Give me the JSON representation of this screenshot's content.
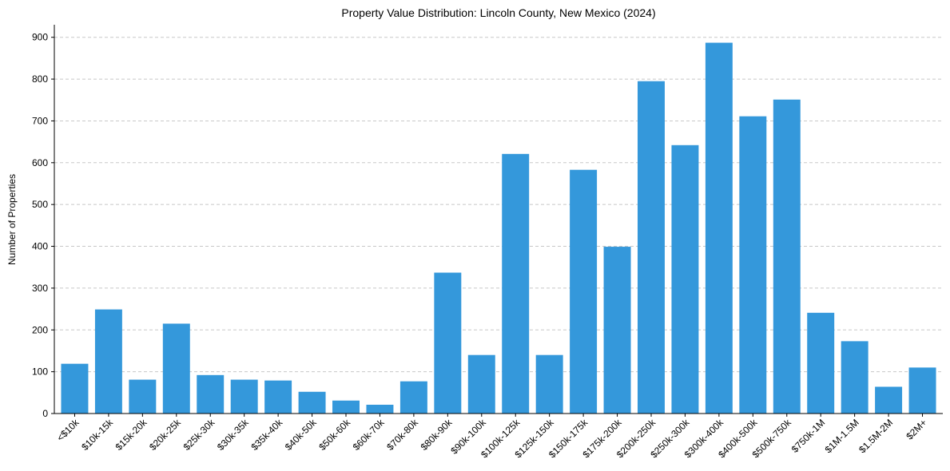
{
  "chart_data": {
    "type": "bar",
    "title": "Property Value Distribution: Lincoln County, New Mexico (2024)",
    "xlabel": "",
    "ylabel": "Number of Properties",
    "ylim": [
      0,
      930
    ],
    "yticks": [
      0,
      100,
      200,
      300,
      400,
      500,
      600,
      700,
      800,
      900
    ],
    "grid": "y-dashed",
    "bar_color": "#3498db",
    "categories": [
      "<$10k",
      "$10k-15k",
      "$15k-20k",
      "$20k-25k",
      "$25k-30k",
      "$30k-35k",
      "$35k-40k",
      "$40k-50k",
      "$50k-60k",
      "$60k-70k",
      "$70k-80k",
      "$80k-90k",
      "$90k-100k",
      "$100k-125k",
      "$125k-150k",
      "$150k-175k",
      "$175k-200k",
      "$200k-250k",
      "$250k-300k",
      "$300k-400k",
      "$400k-500k",
      "$500k-750k",
      "$750k-1M",
      "$1M-1.5M",
      "$1.5M-2M",
      "$2M+"
    ],
    "values": [
      119,
      249,
      81,
      215,
      92,
      81,
      79,
      52,
      31,
      21,
      77,
      337,
      140,
      621,
      140,
      583,
      399,
      795,
      642,
      887,
      711,
      751,
      241,
      173,
      64,
      110
    ]
  }
}
